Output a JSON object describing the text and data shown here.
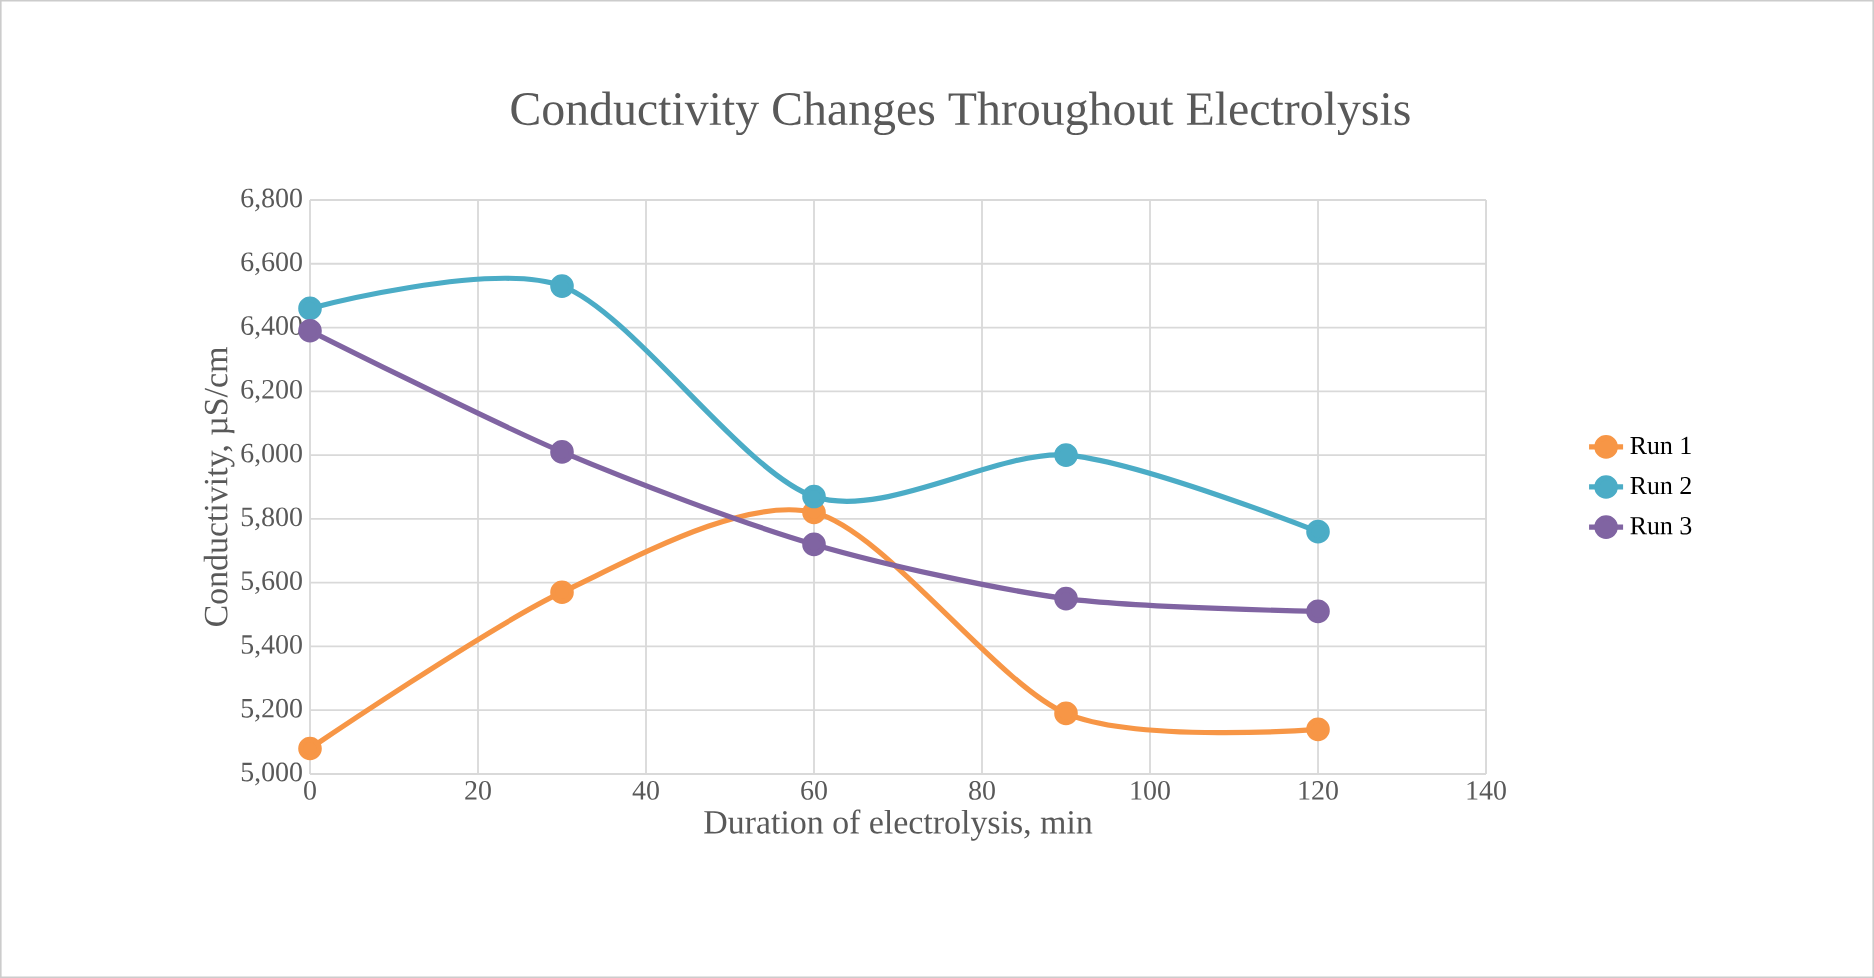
{
  "chart_data": {
    "type": "line",
    "title": "Conductivity Changes Throughout Electrolysis",
    "xlabel": "Duration of electrolysis, min",
    "ylabel": "Conductivity, µS/cm",
    "x": [
      0,
      30,
      60,
      90,
      120
    ],
    "series": [
      {
        "name": "Run 1",
        "color": "#f79646",
        "values": [
          5080,
          5570,
          5820,
          5190,
          5140
        ]
      },
      {
        "name": "Run 2",
        "color": "#4bacc6",
        "values": [
          6460,
          6530,
          5870,
          6000,
          5760
        ]
      },
      {
        "name": "Run 3",
        "color": "#8064a2",
        "values": [
          6390,
          6010,
          5720,
          5550,
          5510
        ]
      }
    ],
    "xlim": [
      0,
      140
    ],
    "xticks": [
      0,
      20,
      40,
      60,
      80,
      100,
      120,
      140
    ],
    "ylim": [
      5000,
      6800
    ],
    "yticks": [
      {
        "value": 5000,
        "label": "5,000"
      },
      {
        "value": 5200,
        "label": "5,200"
      },
      {
        "value": 5400,
        "label": "5,400"
      },
      {
        "value": 5600,
        "label": "5,600"
      },
      {
        "value": 5800,
        "label": "5,800"
      },
      {
        "value": 6000,
        "label": "6,000"
      },
      {
        "value": 6200,
        "label": "6,200"
      },
      {
        "value": 6400,
        "label": "6,400"
      },
      {
        "value": 6600,
        "label": "6,600"
      },
      {
        "value": 6800,
        "label": "6,800"
      }
    ],
    "grid": true,
    "legend": "right",
    "marker": "circle"
  }
}
